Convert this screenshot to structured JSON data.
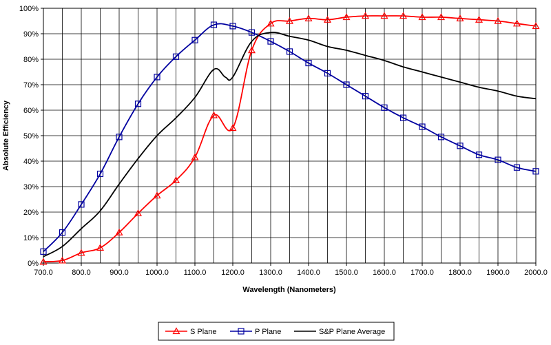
{
  "chart_data": {
    "type": "line",
    "xlabel": "Wavelength (Nanometers)",
    "ylabel": "Absolute Efficiency",
    "xlim": [
      700,
      2000
    ],
    "ylim": [
      0,
      100
    ],
    "grid": true,
    "x_ticks": [
      700,
      800,
      900,
      1000,
      1100,
      1200,
      1300,
      1400,
      1500,
      1600,
      1700,
      1800,
      1900,
      2000
    ],
    "x_tick_labels": [
      "700.0",
      "800.0",
      "900.0",
      "1000.0",
      "1100.0",
      "1200.0",
      "1300.0",
      "1400.0",
      "1500.0",
      "1600.0",
      "1700.0",
      "1800.0",
      "1900.0",
      "2000.0"
    ],
    "y_ticks": [
      0,
      10,
      20,
      30,
      40,
      50,
      60,
      70,
      80,
      90,
      100
    ],
    "y_tick_labels": [
      "0%",
      "10%",
      "20%",
      "30%",
      "40%",
      "50%",
      "60%",
      "70%",
      "80%",
      "90%",
      "100%"
    ],
    "legend_position": "bottom-center",
    "series": [
      {
        "name": "S Plane",
        "color": "#ff0000",
        "marker": "triangle",
        "x": [
          700,
          750,
          800,
          850,
          900,
          950,
          1000,
          1050,
          1100,
          1150,
          1200,
          1250,
          1300,
          1350,
          1400,
          1450,
          1500,
          1550,
          1600,
          1650,
          1700,
          1750,
          1800,
          1850,
          1900,
          1950,
          2000
        ],
        "values": [
          0.5,
          1,
          4,
          6,
          12,
          19.5,
          26.5,
          32.5,
          41.5,
          58,
          53,
          83.5,
          94,
          95,
          96,
          95.5,
          96.5,
          97,
          97,
          97,
          96.5,
          96.5,
          96,
          95.5,
          95,
          94,
          93
        ]
      },
      {
        "name": "P Plane",
        "color": "#0000a0",
        "marker": "square",
        "x": [
          700,
          750,
          800,
          850,
          900,
          950,
          1000,
          1050,
          1100,
          1150,
          1200,
          1250,
          1300,
          1350,
          1400,
          1450,
          1500,
          1550,
          1600,
          1650,
          1700,
          1750,
          1800,
          1850,
          1900,
          1950,
          2000
        ],
        "values": [
          4.5,
          12,
          23,
          35,
          49.5,
          62.5,
          73,
          81,
          87.5,
          93.5,
          93,
          90.5,
          87,
          83,
          78.5,
          74.5,
          70,
          65.5,
          61,
          57,
          53.5,
          49.5,
          46,
          42.5,
          40.5,
          37.5,
          36
        ]
      },
      {
        "name": "S&P Plane Average",
        "color": "#000000",
        "marker": "none",
        "x": [
          700,
          750,
          800,
          850,
          900,
          950,
          1000,
          1050,
          1100,
          1150,
          1180,
          1200,
          1250,
          1300,
          1350,
          1400,
          1450,
          1500,
          1550,
          1600,
          1650,
          1700,
          1750,
          1800,
          1850,
          1900,
          1950,
          2000
        ],
        "values": [
          2.5,
          6.5,
          13.5,
          20.5,
          31,
          41,
          50,
          57,
          65,
          76,
          73,
          73,
          87,
          90.5,
          89,
          87.5,
          85,
          83.5,
          81.5,
          79.5,
          77,
          75,
          73,
          71,
          69,
          67.5,
          65.5,
          64.5
        ]
      }
    ]
  }
}
